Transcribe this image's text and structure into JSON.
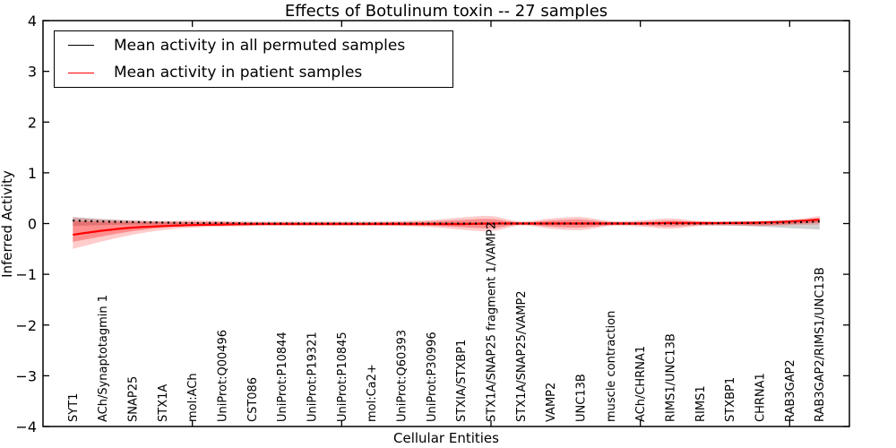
{
  "figure": {
    "title": "Effects of Botulinum toxin -- 27 samples",
    "xlabel": "Cellular Entities",
    "ylabel": "Inferred Activity"
  },
  "legend": {
    "entries": [
      {
        "label": "Mean activity in all permuted samples",
        "color": "#000000",
        "style": "solid"
      },
      {
        "label": "Mean activity in patient samples",
        "color": "#ff0000",
        "style": "solid"
      }
    ]
  },
  "chart_data": {
    "type": "line",
    "title": "Effects of Botulinum toxin -- 27 samples",
    "xlabel": "Cellular Entities",
    "ylabel": "Inferred Activity",
    "ylim": [
      -4,
      4
    ],
    "xlim": [
      0,
      27
    ],
    "grid": false,
    "legend_position": "upper left",
    "yticks": [
      4,
      3,
      2,
      1,
      0,
      -1,
      -2,
      -3,
      -4
    ],
    "xticks_major": [
      5,
      10,
      15,
      20,
      25
    ],
    "categories": [
      "SYT1",
      "ACh/Synaptotagmin 1",
      "SNAP25",
      "STX1A",
      "mol:ACh",
      "UniProt:Q00496",
      "CST086",
      "UniProt:P10844",
      "UniProt:P19321",
      "UniProt:P10845",
      "mol:Ca2+",
      "UniProt:Q60393",
      "UniProt:P30996",
      "STXIA/STXBP1",
      "STX1A/SNAP25 fragment 1/VAMP2",
      "STX1A/SNAP25/VAMP2",
      "VAMP2",
      "UNC13B",
      "muscle contraction",
      "ACh/CHRNA1",
      "RIMS1/UNC13B",
      "RIMS1",
      "STXBP1",
      "CHRNA1",
      "RAB3GAP2",
      "RAB3GAP2/RIMS1/UNC13B"
    ],
    "series": [
      {
        "name": "Mean activity in all permuted samples",
        "color": "#000000",
        "line_style": "dotted",
        "values": [
          0.06,
          0.04,
          0.03,
          0.02,
          0.01,
          0.01,
          0,
          0,
          0,
          0,
          0,
          0,
          0,
          0,
          0,
          0,
          0,
          0,
          0,
          0,
          0,
          0,
          0.01,
          0.01,
          0.02,
          0.04
        ]
      },
      {
        "name": "Mean activity in patient samples",
        "color": "#ff0000",
        "line_style": "solid",
        "values": [
          -0.22,
          -0.14,
          -0.08,
          -0.05,
          -0.03,
          -0.02,
          -0.01,
          -0.01,
          -0.01,
          -0.01,
          -0.01,
          -0.01,
          -0.01,
          -0.01,
          0,
          0,
          0,
          0,
          0,
          0,
          0.01,
          0.01,
          0.01,
          0.02,
          0.04,
          0.08
        ]
      }
    ],
    "bands": [
      {
        "name": "permuted-spread",
        "color": "rgba(120,120,120,0.35)",
        "hi": [
          0.13,
          0.09,
          0.06,
          0.04,
          0.03,
          0.03,
          0.03,
          0.03,
          0.03,
          0.03,
          0.03,
          0.03,
          0.03,
          0.03,
          0.03,
          0.03,
          0.03,
          0.03,
          0.03,
          0.03,
          0.03,
          0.03,
          0.04,
          0.05,
          0.07,
          0.09
        ],
        "lo": [
          -0.05,
          -0.03,
          -0.02,
          -0.02,
          -0.02,
          -0.02,
          -0.02,
          -0.02,
          -0.02,
          -0.02,
          -0.02,
          -0.02,
          -0.02,
          -0.02,
          -0.02,
          -0.02,
          -0.02,
          -0.02,
          -0.02,
          -0.02,
          -0.02,
          -0.03,
          -0.04,
          -0.06,
          -0.09,
          -0.12
        ]
      },
      {
        "name": "patient-spread-outer",
        "color": "rgba(255,0,0,0.20)",
        "hi": [
          0.12,
          0.08,
          0.06,
          0.05,
          0.06,
          0.05,
          0.04,
          0.04,
          0.04,
          0.04,
          0.04,
          0.05,
          0.07,
          0.12,
          0.15,
          0.04,
          0.1,
          0.13,
          0.05,
          0.06,
          0.1,
          0.05,
          0.04,
          0.05,
          0.07,
          0.15
        ],
        "lo": [
          -0.5,
          -0.35,
          -0.22,
          -0.13,
          -0.08,
          -0.06,
          -0.05,
          -0.04,
          -0.04,
          -0.04,
          -0.04,
          -0.05,
          -0.07,
          -0.12,
          -0.15,
          -0.04,
          -0.1,
          -0.13,
          -0.05,
          -0.06,
          -0.1,
          -0.05,
          -0.04,
          -0.05,
          -0.03,
          -0.02
        ],
        "n_note": ""
      },
      {
        "name": "patient-spread-inner",
        "color": "rgba(255,0,0,0.30)",
        "hi": [
          0.05,
          0.04,
          0.03,
          0.03,
          0.03,
          0.03,
          0.02,
          0.02,
          0.02,
          0.02,
          0.02,
          0.03,
          0.04,
          0.07,
          0.09,
          0.02,
          0.06,
          0.08,
          0.03,
          0.03,
          0.06,
          0.03,
          0.02,
          0.03,
          0.04,
          0.11
        ],
        "lo": [
          -0.36,
          -0.25,
          -0.15,
          -0.08,
          -0.05,
          -0.04,
          -0.03,
          -0.02,
          -0.02,
          -0.02,
          -0.02,
          -0.03,
          -0.04,
          -0.07,
          -0.09,
          -0.02,
          -0.06,
          -0.08,
          -0.03,
          -0.03,
          -0.06,
          -0.03,
          -0.02,
          -0.03,
          -0.01,
          0.02
        ]
      }
    ],
    "colors": {
      "permuted_line": "#000000",
      "patient_line": "#ff0000",
      "axis": "#000000",
      "background": "#ffffff"
    }
  }
}
